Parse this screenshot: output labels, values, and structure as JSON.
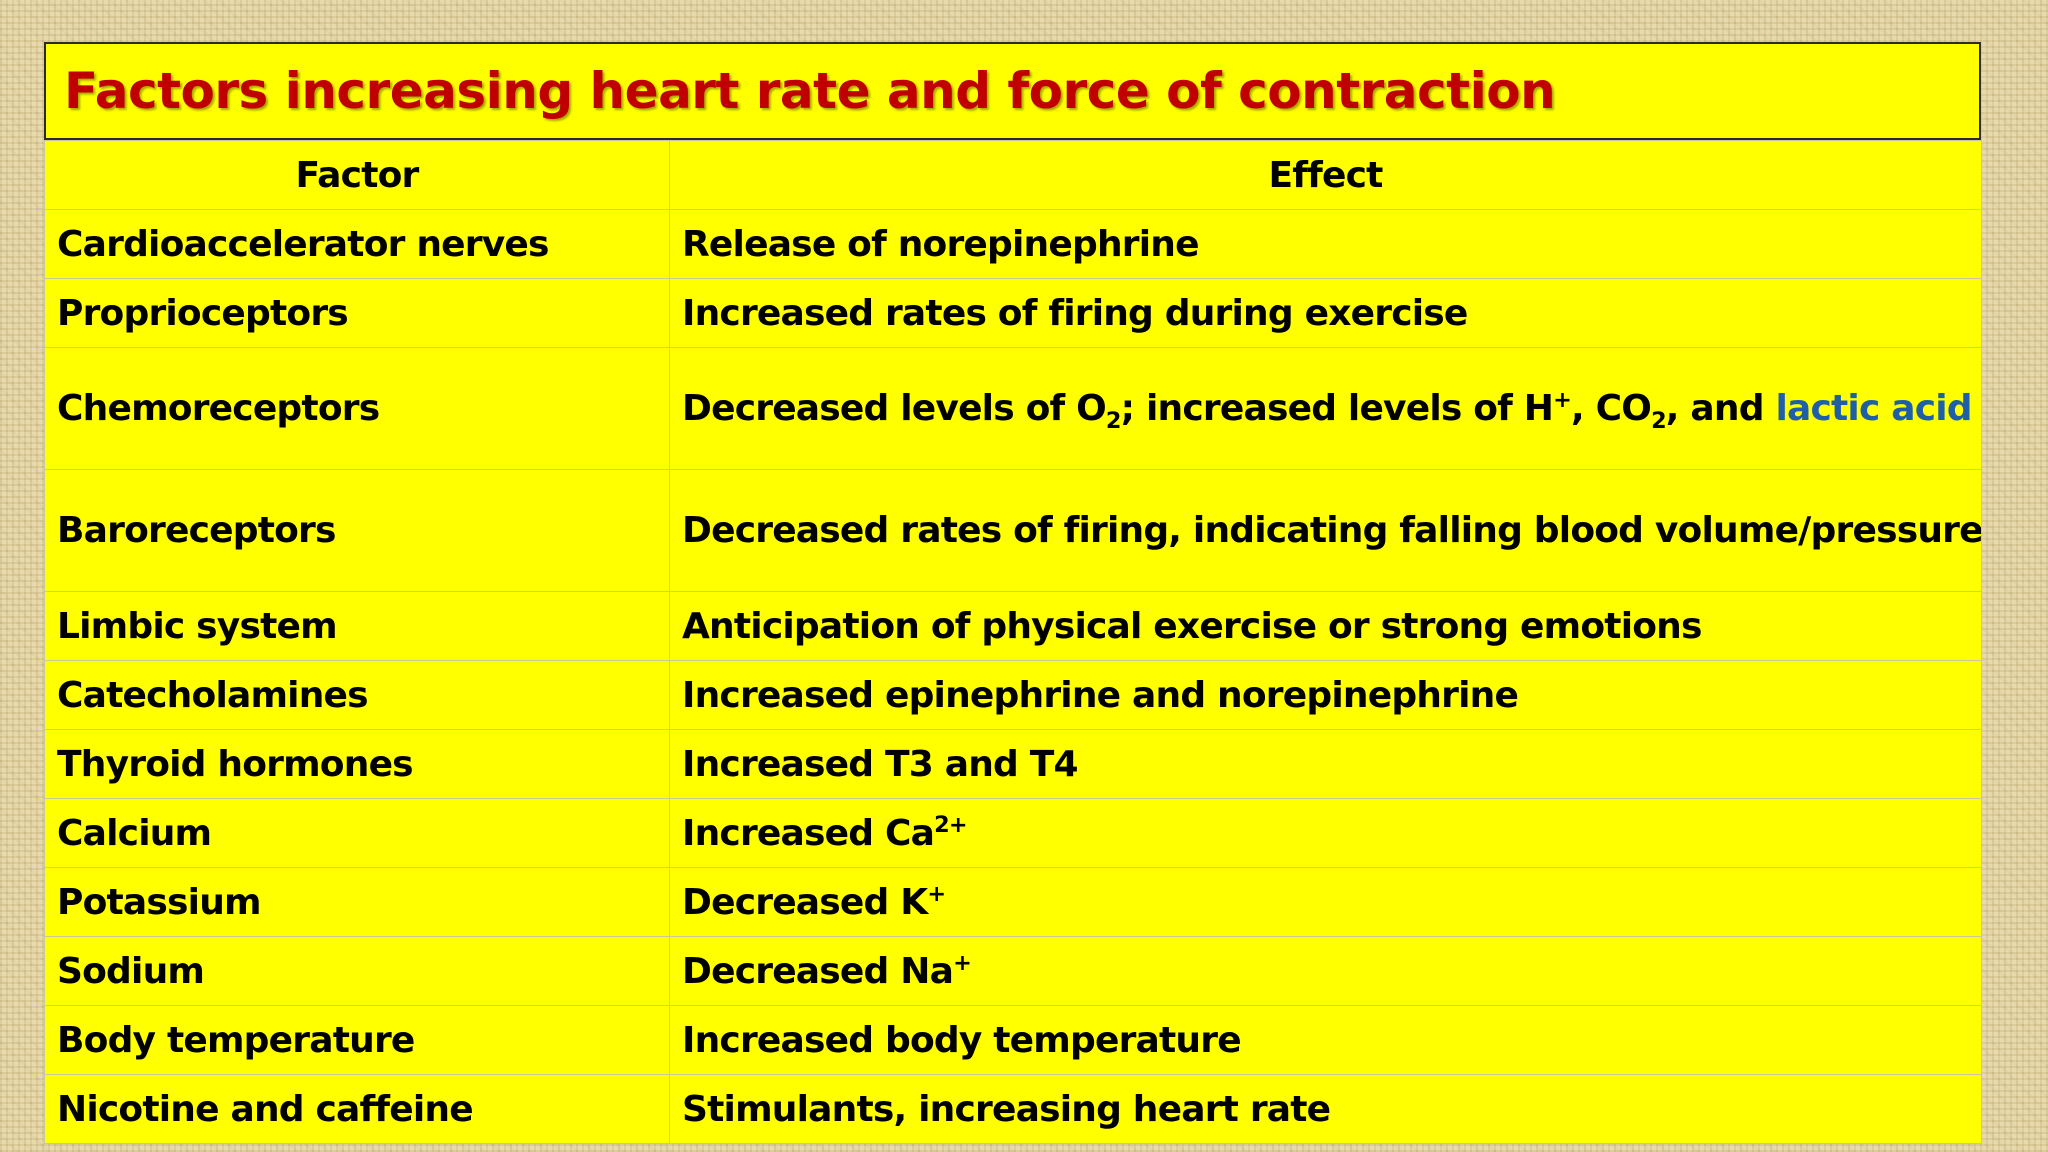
{
  "slide": {
    "title": "Factors increasing heart rate and force of contraction"
  },
  "colors": {
    "title_text": "#c00000",
    "slide_background": "#ffff00",
    "link_accent": "#1f5fa8",
    "page_background": "#e6d6a3"
  },
  "table": {
    "headers": [
      "Factor",
      "Effect"
    ],
    "rows": [
      {
        "factor": "Cardioaccelerator nerves",
        "effect": "Release of norepinephrine"
      },
      {
        "factor": "Proprioceptors",
        "effect": "Increased rates of firing during exercise"
      },
      {
        "factor": "Chemoreceptors",
        "effect_parts": {
          "t1": "Decreased levels of O",
          "s1": "2",
          "t2": "; increased levels of H",
          "s2": "+",
          "t3": ", CO",
          "s3": "2",
          "t4": ", and ",
          "accent": "lactic acid"
        }
      },
      {
        "factor": "Baroreceptors",
        "effect": "Decreased rates of firing, indicating falling blood volume/pressure"
      },
      {
        "factor": "Limbic system",
        "effect": "Anticipation of physical exercise or strong emotions"
      },
      {
        "factor": "Catecholamines",
        "effect": "Increased epinephrine and norepinephrine"
      },
      {
        "factor": "Thyroid hormones",
        "effect": "Increased T3 and T4"
      },
      {
        "factor": "Calcium",
        "effect_parts": {
          "t1": "Increased Ca",
          "s1": "2+"
        }
      },
      {
        "factor": "Potassium",
        "effect_parts": {
          "t1": "Decreased K",
          "s1": "+"
        }
      },
      {
        "factor": "Sodium",
        "effect_parts": {
          "t1": "Decreased Na",
          "s1": "+"
        }
      },
      {
        "factor": "Body temperature",
        "effect": "Increased body temperature"
      },
      {
        "factor": "Nicotine and caffeine",
        "effect": "Stimulants, increasing heart rate"
      }
    ]
  }
}
